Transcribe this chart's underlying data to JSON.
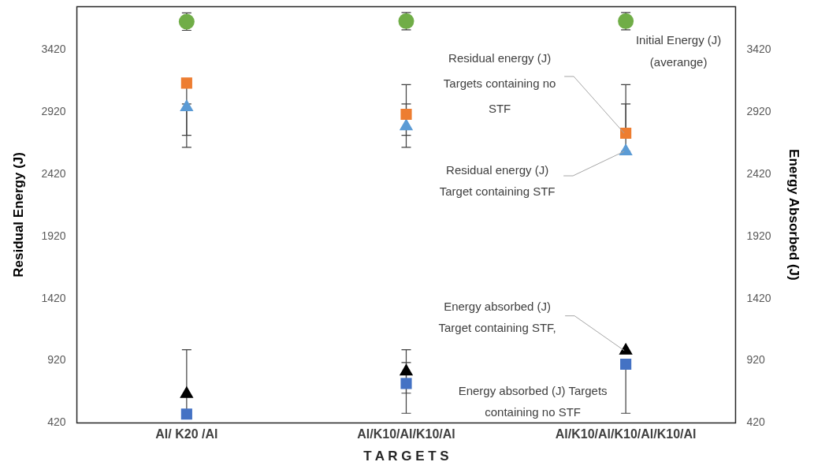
{
  "chart_data": {
    "type": "scatter",
    "xlabel": "T A R G E T S",
    "ylabel": "Residual Energy (J)",
    "y2label": "Energy Absorbed (J)",
    "categories": [
      "Al/ K20 /Al",
      "Al/K10/Al/K10/Al",
      "Al/K10/Al/K10/Al/K10/Al"
    ],
    "ylim": [
      420,
      3770
    ],
    "yticks": [
      420,
      920,
      1420,
      1920,
      2420,
      2920,
      3420
    ],
    "y2lim": [
      420,
      3770
    ],
    "y2ticks": [
      420,
      920,
      1420,
      1920,
      2420,
      2920,
      3420
    ],
    "grid": false,
    "legend": false,
    "series": [
      {
        "color": "#70ad47",
        "marker": "circle",
        "values": [
          3649,
          3653,
          3653
        ],
        "errors": [
          70,
          70,
          70
        ]
      },
      {
        "color": "#ed7d31",
        "marker": "square",
        "values": [
          3155,
          2903,
          2751
        ],
        "errors": [
          [
            2638,
            3155
          ],
          [
            2735,
            3142
          ],
          [
            2751,
            3142
          ]
        ]
      },
      {
        "color": "#5b9bd5",
        "marker": "triangle",
        "values": [
          2961,
          2806,
          2605
        ],
        "errors": [
          [
            2735,
            2987
          ],
          [
            2638,
            2987
          ],
          [
            2605,
            2987
          ]
        ]
      },
      {
        "color": "#000000",
        "marker": "triangle",
        "values": [
          653,
          834,
          1002
        ],
        "errors": [
          null,
          [
            659,
            1008
          ],
          null
        ]
      },
      {
        "color": "#4472c4",
        "marker": "square",
        "values": [
          491,
          737,
          892
        ],
        "errors": [
          [
            491,
            1008
          ],
          [
            497,
            905
          ],
          [
            497,
            892
          ]
        ]
      }
    ],
    "annotations": [
      {
        "text": "Residual energy (J) Targets containing no STF",
        "x": "Al/K10/Al/K10/Al/K10/Al",
        "y": 2751
      },
      {
        "text": "Residual energy (J) Target containing STF",
        "x": "Al/K10/Al/K10/Al/K10/Al",
        "y": 2605
      },
      {
        "text": "Energy absorbed (J) Target containing STF,",
        "x": "Al/K10/Al/K10/Al/K10/Al",
        "y": 1002
      },
      {
        "text": "Energy absorbed (J) Targets containing no STF",
        "x": "Al/K10/Al/K10/Al/K10/Al",
        "y": 892
      },
      {
        "text": "Initial Energy (J) (averange)",
        "x": "Al/K10/Al/K10/Al/K10/Al",
        "y": 3653
      }
    ]
  }
}
